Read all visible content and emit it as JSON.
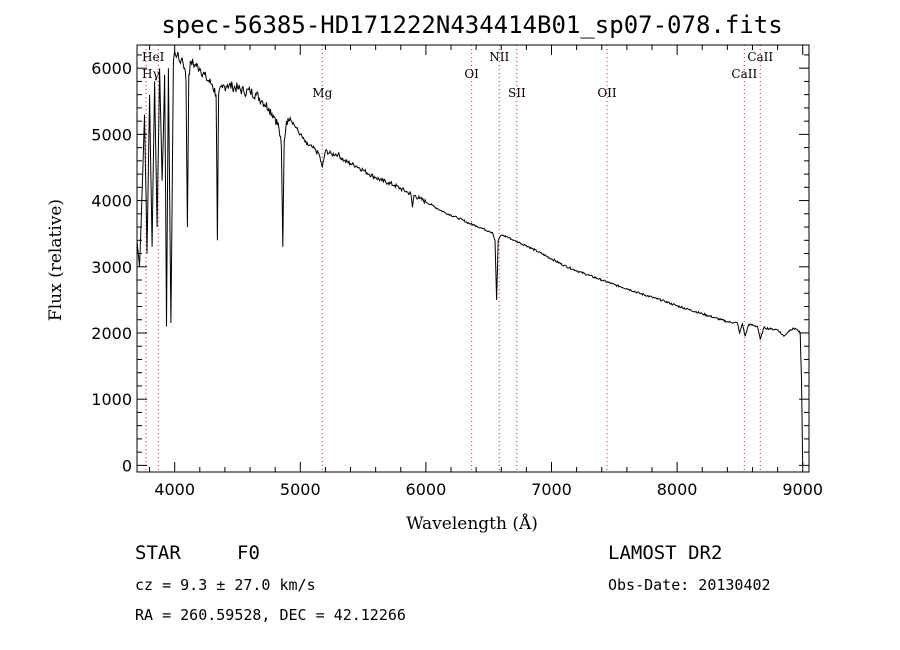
{
  "chart_data": {
    "type": "line",
    "title": "spec-56385-HD171222N434414B01_sp07-078.fits",
    "xlabel": "Wavelength (Å)",
    "ylabel": "Flux (relative)",
    "xlim": [
      3700,
      9050
    ],
    "ylim": [
      -100,
      6350
    ],
    "x_ticks": [
      "4000",
      "5000",
      "6000",
      "7000",
      "8000",
      "9000"
    ],
    "y_ticks": [
      "0",
      "1000",
      "2000",
      "3000",
      "4000",
      "5000",
      "6000"
    ],
    "grid": false,
    "line_color": "#000000",
    "marker_color": "#cc2222",
    "spectral_lines": [
      {
        "name": "Hγ",
        "wavelength": 3772
      },
      {
        "name": "HeI",
        "wavelength": 3870
      },
      {
        "name": "Mg",
        "wavelength": 5175
      },
      {
        "name": "OI",
        "wavelength": 6364
      },
      {
        "name": "NII",
        "wavelength": 6584
      },
      {
        "name": "SII",
        "wavelength": 6724
      },
      {
        "name": "OII",
        "wavelength": 7442
      },
      {
        "name": "CaII",
        "wavelength": 8535
      },
      {
        "name": "CaII",
        "wavelength": 8662
      }
    ],
    "series": [
      {
        "x": [
          3700,
          3720,
          3740,
          3760,
          3780,
          3800,
          3820,
          3840,
          3860,
          3880,
          3900,
          3920,
          3935,
          3950,
          3970,
          3990,
          4000,
          4020,
          4040,
          4060,
          4080,
          4090,
          4101,
          4112,
          4130,
          4160,
          4200,
          4250,
          4300,
          4330,
          4340,
          4350,
          4380,
          4420,
          4460,
          4500,
          4550,
          4600,
          4650,
          4700,
          4750,
          4800,
          4830,
          4850,
          4861,
          4872,
          4890,
          4920,
          4950,
          5000,
          5050,
          5100,
          5150,
          5175,
          5200,
          5250,
          5300,
          5350,
          5400,
          5450,
          5500,
          5550,
          5600,
          5650,
          5700,
          5750,
          5800,
          5850,
          5880,
          5893,
          5905,
          5950,
          6000,
          6050,
          6100,
          6150,
          6200,
          6250,
          6300,
          6350,
          6400,
          6450,
          6500,
          6530,
          6550,
          6563,
          6576,
          6600,
          6650,
          6700,
          6750,
          6800,
          6900,
          7000,
          7100,
          7200,
          7300,
          7400,
          7500,
          7600,
          7700,
          7800,
          7900,
          8000,
          8100,
          8200,
          8300,
          8400,
          8480,
          8498,
          8520,
          8542,
          8570,
          8640,
          8662,
          8690,
          8750,
          8800,
          8850,
          8900,
          8940,
          8960,
          8980,
          8990,
          9000
        ],
        "y": [
          3400,
          3000,
          4100,
          5300,
          3200,
          5600,
          3300,
          5800,
          3600,
          6000,
          4300,
          5900,
          2100,
          6000,
          2150,
          6100,
          6250,
          6200,
          6100,
          6150,
          6000,
          5800,
          3600,
          5900,
          6100,
          6050,
          6000,
          5850,
          5750,
          5600,
          3400,
          5600,
          5700,
          5750,
          5720,
          5700,
          5650,
          5650,
          5600,
          5500,
          5400,
          5250,
          5100,
          4800,
          3300,
          4900,
          5200,
          5250,
          5150,
          5000,
          4850,
          4800,
          4700,
          4500,
          4750,
          4700,
          4700,
          4600,
          4560,
          4520,
          4460,
          4400,
          4350,
          4300,
          4270,
          4230,
          4180,
          4130,
          4100,
          3900,
          4080,
          4030,
          3980,
          3930,
          3870,
          3820,
          3780,
          3740,
          3700,
          3650,
          3620,
          3580,
          3540,
          3520,
          3400,
          2500,
          3400,
          3480,
          3450,
          3400,
          3360,
          3320,
          3220,
          3120,
          3020,
          2940,
          2870,
          2800,
          2730,
          2670,
          2600,
          2540,
          2480,
          2410,
          2350,
          2290,
          2230,
          2170,
          2150,
          2000,
          2140,
          1950,
          2130,
          2100,
          1900,
          2080,
          2060,
          2050,
          1950,
          2050,
          2070,
          2040,
          2000,
          1300,
          0
        ]
      }
    ],
    "footer": {
      "object": "STAR",
      "subclass": "F0",
      "survey": "LAMOST DR2",
      "redshift": "cz = 9.3 ± 27.0 km/s",
      "obs_date": "Obs-Date: 20130402",
      "coords": "RA = 260.59528, DEC =  42.12266"
    }
  }
}
